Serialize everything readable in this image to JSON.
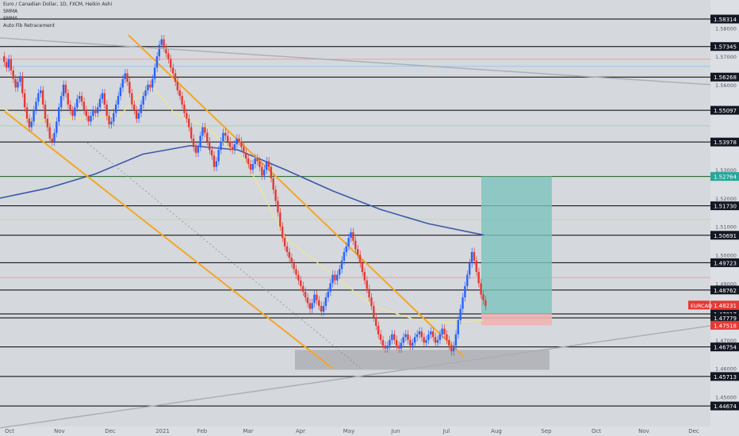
{
  "header": {
    "title": "Euro / Canadian Dollar, 1D, FXCM, Heikin Ashi",
    "indicators": [
      "SMMA",
      "SMMA",
      "Auto Fib Retracement"
    ]
  },
  "colors": {
    "background": "#d5d8dd",
    "bull": "#2962ff",
    "bear": "#e53935",
    "channel": "#f5a623",
    "smma_fast": "#f0e68c",
    "smma_slow": "#3d5aa8",
    "take_profit_zone": "#7cc3bd",
    "stop_zone": "#f0b4b4",
    "support_box": "#a9abb0",
    "label_black": "#131722",
    "label_green": "#26a69a",
    "label_red": "#e53935"
  },
  "chart_data": {
    "type": "candlestick",
    "symbol": "EURCAD",
    "ylim": [
      1.4395,
      1.5865
    ],
    "x_months": [
      "Oct",
      "Nov",
      "Dec",
      "2021",
      "Feb",
      "Mar",
      "Apr",
      "May",
      "Jun",
      "Jul",
      "Aug",
      "Sep",
      "Oct",
      "Nov",
      "Dec"
    ],
    "y_ticks": [
      "1.58000",
      "1.57000",
      "1.56000",
      "1.53000",
      "1.52000",
      "1.51000",
      "1.50000",
      "1.49000",
      "1.47000",
      "1.46000",
      "1.45000"
    ],
    "level_labels": [
      {
        "text": "1.58314",
        "value": 1.58314,
        "style": "black"
      },
      {
        "text": "1.57345",
        "value": 1.57345,
        "style": "black"
      },
      {
        "text": "1.56268",
        "value": 1.56268,
        "style": "black"
      },
      {
        "text": "1.55097",
        "value": 1.55097,
        "style": "black"
      },
      {
        "text": "1.53978",
        "value": 1.53978,
        "style": "black"
      },
      {
        "text": "1.52764",
        "value": 1.52764,
        "style": "green"
      },
      {
        "text": "1.51730",
        "value": 1.5173,
        "style": "black"
      },
      {
        "text": "1.50691",
        "value": 1.50691,
        "style": "black"
      },
      {
        "text": "1.49723",
        "value": 1.49723,
        "style": "black"
      },
      {
        "text": "1.48762",
        "value": 1.48762,
        "style": "black"
      },
      {
        "text": "1.48231",
        "value": 1.48231,
        "style": "red"
      },
      {
        "text": "1.47917",
        "value": 1.47917,
        "style": "black"
      },
      {
        "text": "1.47779",
        "value": 1.47779,
        "style": "black"
      },
      {
        "text": "1.47518",
        "value": 1.47518,
        "style": "red"
      },
      {
        "text": "1.46754",
        "value": 1.46754,
        "style": "black"
      },
      {
        "text": "1.45713",
        "value": 1.45713,
        "style": "black"
      },
      {
        "text": "1.44674",
        "value": 1.44674,
        "style": "black"
      }
    ],
    "symbol_tag": "EURCAD",
    "candles_close": [
      1.568,
      1.566,
      1.569,
      1.565,
      1.562,
      1.559,
      1.561,
      1.563,
      1.557,
      1.552,
      1.548,
      1.545,
      1.547,
      1.551,
      1.554,
      1.557,
      1.558,
      1.553,
      1.548,
      1.545,
      1.541,
      1.54,
      1.543,
      1.547,
      1.552,
      1.556,
      1.56,
      1.557,
      1.553,
      1.551,
      1.549,
      1.552,
      1.555,
      1.556,
      1.554,
      1.551,
      1.549,
      1.547,
      1.549,
      1.551,
      1.55,
      1.552,
      1.555,
      1.557,
      1.553,
      1.549,
      1.546,
      1.547,
      1.55,
      1.553,
      1.556,
      1.559,
      1.562,
      1.564,
      1.561,
      1.557,
      1.553,
      1.551,
      1.548,
      1.55,
      1.553,
      1.556,
      1.558,
      1.56,
      1.559,
      1.562,
      1.566,
      1.57,
      1.574,
      1.576,
      1.573,
      1.571,
      1.569,
      1.566,
      1.564,
      1.561,
      1.558,
      1.556,
      1.553,
      1.55,
      1.548,
      1.545,
      1.541,
      1.538,
      1.536,
      1.538,
      1.542,
      1.545,
      1.543,
      1.54,
      1.537,
      1.535,
      1.531,
      1.533,
      1.537,
      1.54,
      1.543,
      1.542,
      1.54,
      1.538,
      1.537,
      1.539,
      1.541,
      1.54,
      1.538,
      1.536,
      1.534,
      1.532,
      1.53,
      1.532,
      1.534,
      1.533,
      1.531,
      1.528,
      1.53,
      1.533,
      1.531,
      1.527,
      1.523,
      1.519,
      1.515,
      1.51,
      1.506,
      1.503,
      1.501,
      1.499,
      1.497,
      1.495,
      1.493,
      1.491,
      1.489,
      1.487,
      1.485,
      1.483,
      1.481,
      1.483,
      1.486,
      1.484,
      1.482,
      1.48,
      1.482,
      1.485,
      1.487,
      1.49,
      1.493,
      1.491,
      1.493,
      1.495,
      1.498,
      1.501,
      1.503,
      1.506,
      1.508,
      1.505,
      1.502,
      1.5,
      1.497,
      1.494,
      1.491,
      1.488,
      1.485,
      1.482,
      1.478,
      1.475,
      1.472,
      1.47,
      1.468,
      1.467,
      1.468,
      1.47,
      1.472,
      1.47,
      1.468,
      1.467,
      1.469,
      1.471,
      1.472,
      1.47,
      1.468,
      1.469,
      1.471,
      1.472,
      1.473,
      1.471,
      1.469,
      1.47,
      1.472,
      1.473,
      1.471,
      1.469,
      1.47,
      1.472,
      1.474,
      1.472,
      1.47,
      1.468,
      1.466,
      1.468,
      1.472,
      1.477,
      1.481,
      1.485,
      1.489,
      1.493,
      1.497,
      1.501,
      1.498,
      1.494,
      1.49,
      1.486,
      1.484,
      1.482
    ],
    "channel_upper": {
      "from": [
        "2020-12-20",
        1.5775
      ],
      "to": [
        "2021-07-25",
        1.464
      ]
    },
    "channel_lower": {
      "from": [
        "2020-10-01",
        1.5505
      ],
      "to": [
        "2021-05-01",
        1.46
      ]
    },
    "take_profit": 1.52764,
    "entry": 1.47917,
    "stop": 1.47518,
    "support_zone": [
      1.4595,
      1.4665
    ]
  }
}
